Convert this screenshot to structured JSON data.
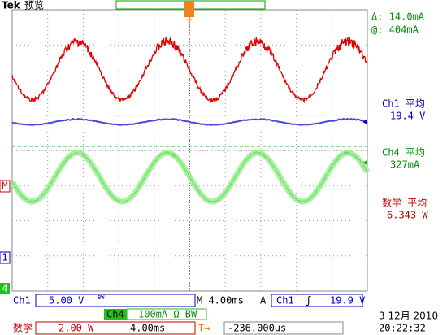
{
  "header": {
    "brand": "Tek",
    "mode": "预览"
  },
  "readouts": {
    "delta": "Δ:  14.0mA",
    "at": "@:  404mA",
    "ch1_label": "Ch1 平均",
    "ch1_value": "19.4 V",
    "ch4_label": "Ch4 平均",
    "ch4_value": "327mA",
    "math_label": "数学 平均",
    "math_value": "6.343 W"
  },
  "markers": {
    "trigger": "T",
    "math": "M",
    "ch1": "1",
    "ch4": "4"
  },
  "status": {
    "ch1": "Ch1",
    "ch1_scale": "5.00 V",
    "ch1_bw": "BW",
    "timebase": "M 4.00ms",
    "trigger_mode": "A",
    "trigger_source": "Ch1",
    "trigger_slope": "ʃ",
    "trigger_level": "19.9 V",
    "ch4": "Ch4",
    "ch4_scale": "100mA Ω BW",
    "math": "数学",
    "math_scale": "2.00 W",
    "math_time": "4.00ms",
    "position_icon": "T→",
    "position": "-236.000μs",
    "date": "3 12月 2010",
    "time": "20:22:32"
  }
}
